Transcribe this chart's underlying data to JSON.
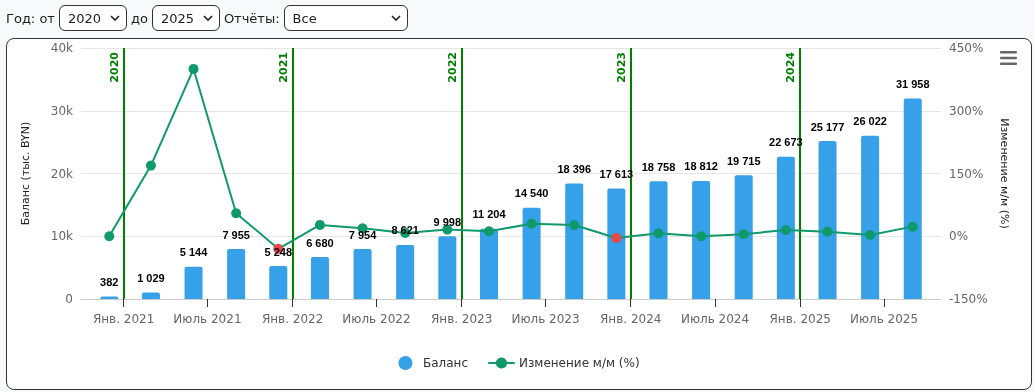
{
  "chart_data": {
    "type": "bar",
    "annotations": [
      "Год: от",
      "2020",
      "до",
      "2025",
      "Отчёты:",
      "Все"
    ],
    "ylabel": "Баланс (тыс. BYN)",
    "y2label": "Изменение м/м (%)",
    "x": [
      "2020-12",
      "2021-03",
      "2021-06",
      "2021-09",
      "2021-12",
      "2022-03",
      "2022-06",
      "2022-09",
      "2022-12",
      "2023-03",
      "2023-06",
      "2023-09",
      "2023-12",
      "2024-03",
      "2024-06",
      "2024-09",
      "2024-12",
      "2025-03",
      "2025-06",
      "2025-09"
    ],
    "series": [
      {
        "name": "Баланс",
        "color": "#36a0e8",
        "values": [
          382,
          1029,
          5144,
          7955,
          5248,
          6680,
          7954,
          8621,
          9998,
          11204,
          14540,
          18396,
          17613,
          18758,
          18812,
          19715,
          22673,
          25177,
          26022,
          31958
        ],
        "value_labels": [
          "382",
          "1 029",
          "5 144",
          "7 955",
          "5 248",
          "6 680",
          "7 954",
          "8 621",
          "9 998",
          "11 204",
          "14 540",
          "18 396",
          "17 613",
          "18 758",
          "18 812",
          "19 715",
          "22 673",
          "25 177",
          "26 022",
          "31 958"
        ]
      },
      {
        "name": "Изменение м/м (%)",
        "type": "line",
        "axis": "y2",
        "color": "#10996a",
        "colors": [
          "#10996a",
          "#10996a",
          "#10996a",
          "#10996a",
          "#e84848",
          "#10996a",
          "#10996a",
          "#10996a",
          "#10996a",
          "#10996a",
          "#10996a",
          "#10996a",
          "#e84848",
          "#10996a",
          "#10996a",
          "#10996a",
          "#10996a",
          "#10996a",
          "#10996a",
          "#10996a"
        ],
        "marker": "circle",
        "line_style": "solid",
        "values": [
          0,
          169,
          400,
          55,
          -30,
          27,
          19,
          8,
          16,
          12,
          30,
          27,
          -4,
          7,
          0,
          5,
          15,
          11,
          3,
          23
        ]
      }
    ],
    "xlim": [
      "2020-10",
      "2025-11"
    ],
    "xticks": [
      {
        "value": "2021-01",
        "label": "Янв. 2021"
      },
      {
        "value": "2021-07",
        "label": "Июль 2021"
      },
      {
        "value": "2022-01",
        "label": "Янв. 2022"
      },
      {
        "value": "2022-07",
        "label": "Июль 2022"
      },
      {
        "value": "2023-01",
        "label": "Янв. 2023"
      },
      {
        "value": "2023-07",
        "label": "Июль 2023"
      },
      {
        "value": "2024-01",
        "label": "Янв. 2024"
      },
      {
        "value": "2024-07",
        "label": "Июль 2024"
      },
      {
        "value": "2025-01",
        "label": "Янв. 2025"
      },
      {
        "value": "2025-07",
        "label": "Июль 2025"
      }
    ],
    "ylim": [
      0,
      40000
    ],
    "yticks": [
      {
        "value": 0,
        "label": "0"
      },
      {
        "value": 10000,
        "label": "10k"
      },
      {
        "value": 20000,
        "label": "20k"
      },
      {
        "value": 30000,
        "label": "30k"
      },
      {
        "value": 40000,
        "label": "40k"
      }
    ],
    "y2lim": [
      -150,
      450
    ],
    "y2ticks": [
      {
        "value": -150,
        "label": "-150%"
      },
      {
        "value": 0,
        "label": "0%"
      },
      {
        "value": 150,
        "label": "150%"
      },
      {
        "value": 300,
        "label": "300%"
      },
      {
        "value": 450,
        "label": "450%"
      }
    ],
    "ref_lines": [
      {
        "axis": "x",
        "value": "2021-01",
        "label": "2020",
        "color": "#008000"
      },
      {
        "axis": "x",
        "value": "2022-01",
        "label": "2021",
        "color": "#008000"
      },
      {
        "axis": "x",
        "value": "2023-01",
        "label": "2022",
        "color": "#008000"
      },
      {
        "axis": "x",
        "value": "2024-01",
        "label": "2023",
        "color": "#008000"
      },
      {
        "axis": "x",
        "value": "2025-01",
        "label": "2024",
        "color": "#008000"
      }
    ],
    "grid": "y",
    "legend": "bottom"
  }
}
